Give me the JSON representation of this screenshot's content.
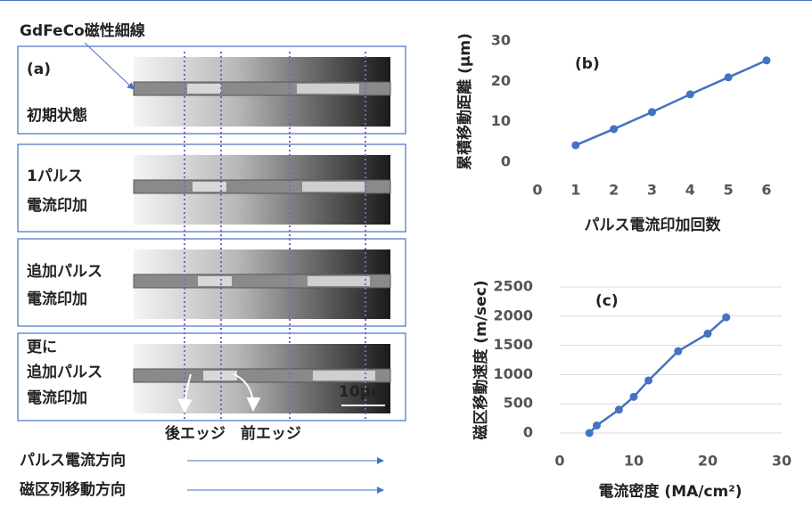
{
  "panel_a": {
    "label": "(a)",
    "pointer": "GdFeCo磁性細線",
    "rows": [
      [
        "初期状態"
      ],
      [
        "1パルス",
        "電流印加"
      ],
      [
        "追加パルス",
        "電流印加"
      ],
      [
        "更に",
        "追加パルス",
        "電流印加"
      ]
    ],
    "scale_bar": "10μm",
    "edges": [
      "後エッジ",
      "前エッジ"
    ],
    "directions": [
      "パルス電流方向",
      "磁区列移動方向"
    ]
  },
  "chart_data": [
    {
      "type": "line",
      "title": "(b)",
      "y_label": "累積移動距離 (μm)",
      "x_label": "パルス電流印加回数",
      "x": [
        1,
        2,
        3,
        4,
        5,
        6
      ],
      "series": [
        {
          "color": "#4472c4",
          "values": [
            4.2,
            8.2,
            12.4,
            16.8,
            21,
            25.2
          ]
        }
      ],
      "xlim": [
        0,
        6
      ],
      "xticks": [
        0,
        1,
        2,
        3,
        4,
        5,
        6
      ],
      "ylim": [
        0,
        30
      ],
      "yticks": [
        0,
        10,
        20,
        30
      ],
      "grid": false
    },
    {
      "type": "line",
      "title": "(c)",
      "y_label": "磁区移動速度 (m/sec)",
      "x_label": "電流密度 (MA/cm²)",
      "x": [
        4,
        5,
        8,
        10,
        12,
        16,
        20,
        22.5
      ],
      "series": [
        {
          "color": "#4472c4",
          "values": [
            0,
            130,
            400,
            620,
            900,
            1400,
            1700,
            1980
          ]
        }
      ],
      "xlim": [
        0,
        30
      ],
      "xticks": [
        0,
        10,
        20,
        30
      ],
      "ylim": [
        0,
        2500
      ],
      "yticks": [
        0,
        500,
        1000,
        1500,
        2000,
        2500
      ],
      "grid": true
    }
  ]
}
